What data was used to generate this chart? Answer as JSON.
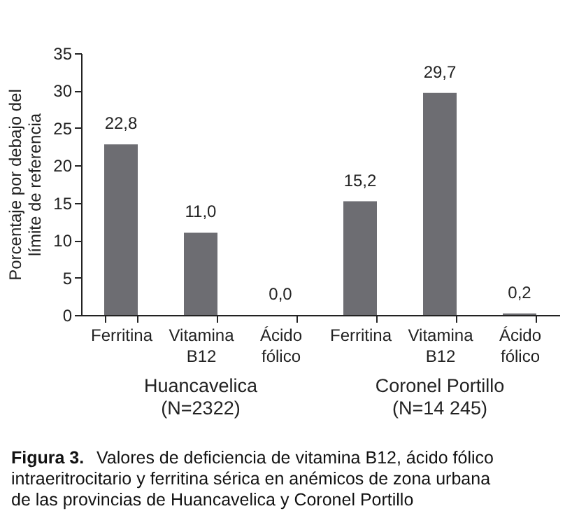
{
  "chart_data": {
    "type": "bar",
    "categories": [
      "Ferritina",
      "Vitamina B12",
      "Ácido fólico",
      "Ferritina",
      "Vitamina B12",
      "Ácido fólico"
    ],
    "values": [
      22.8,
      11.0,
      0.0,
      15.2,
      29.7,
      0.2
    ],
    "color": "#6d6d72",
    "ylabel": "Porcentaje por debajo del límite de referencia",
    "ylim": [
      0,
      35
    ],
    "yticks": [
      0,
      5,
      10,
      15,
      20,
      25,
      30,
      35
    ],
    "value_labels": [
      "22,8",
      "11,0",
      "0,0",
      "15,2",
      "29,7",
      "0,2"
    ],
    "grid": false,
    "annotations": [
      "Huancavelica\n(N=2322)",
      "Coronel Portillo\n(N=14 245)",
      "Figura 3. Valores de deficiencia de vitamina B12, ácido fólico intraeritrocitario y ferritina sérica en anémicos de zona urbana de las provincias de Huancavelica y Coronel Portillo"
    ]
  }
}
